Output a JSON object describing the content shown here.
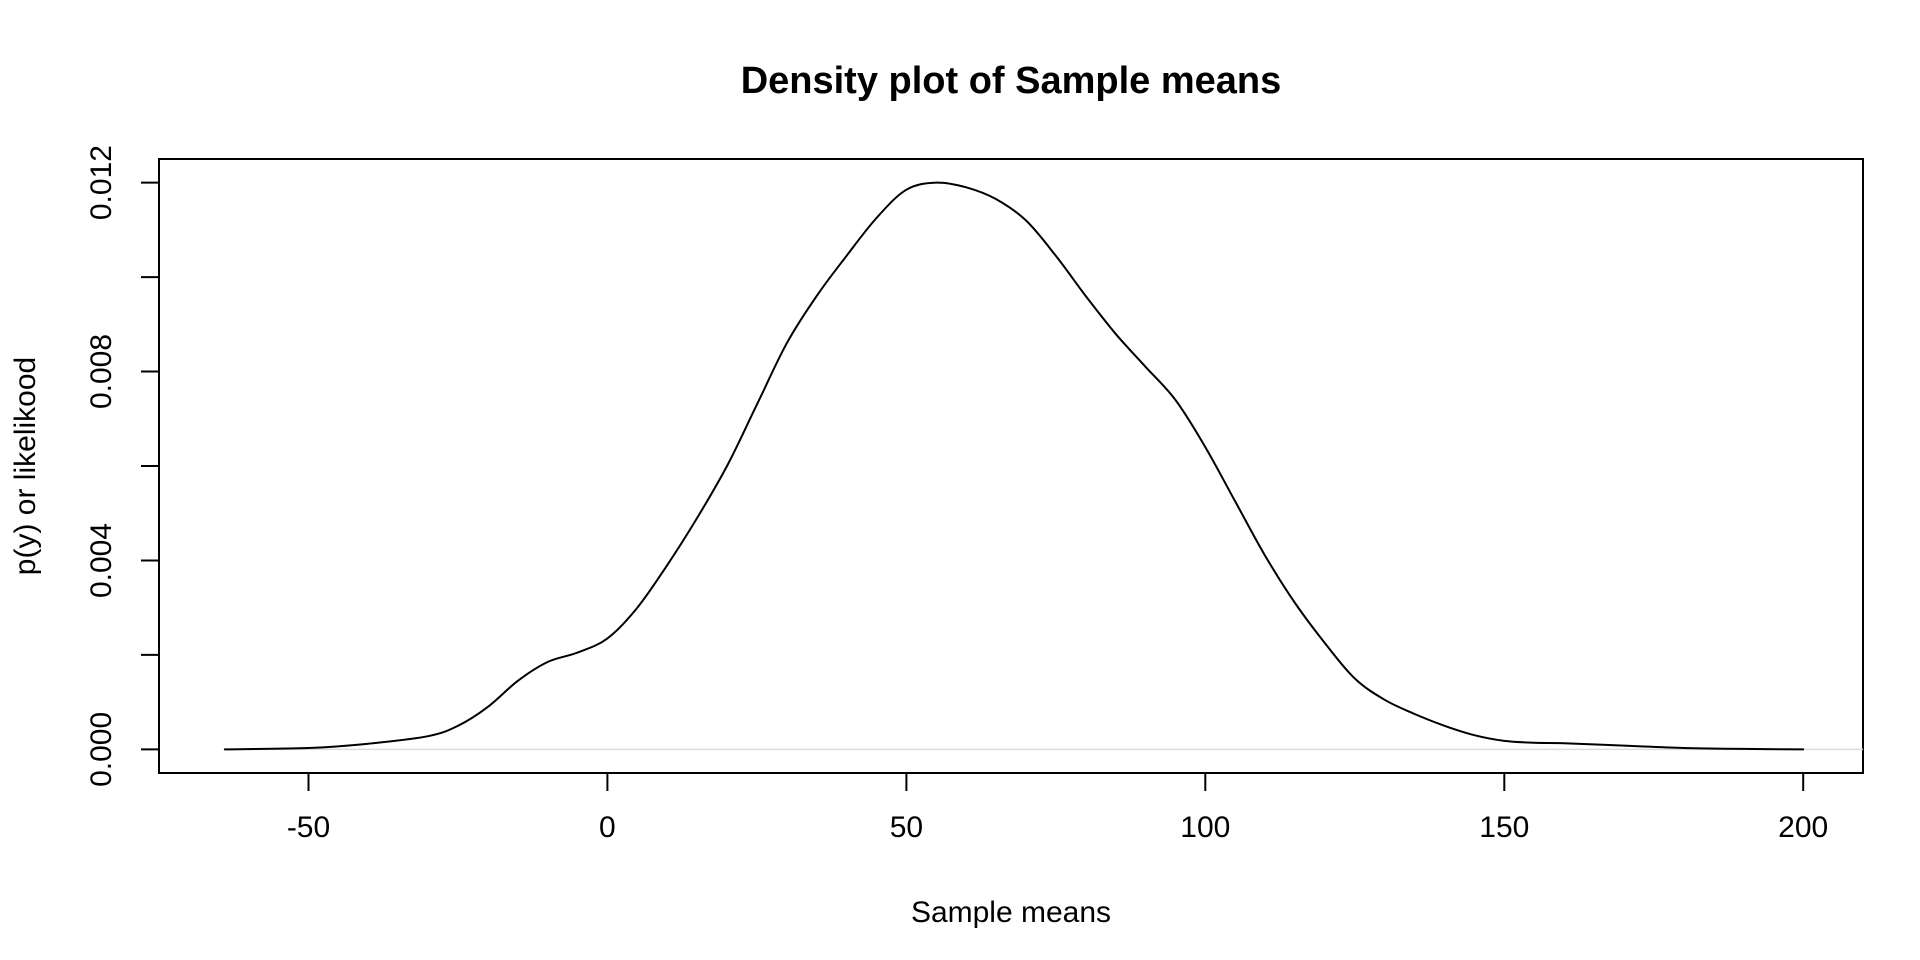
{
  "chart_data": {
    "type": "line",
    "title": "Density plot of Sample means",
    "xlabel": "Sample means",
    "ylabel": "p(y) or likelikood",
    "xlim": [
      -75,
      210
    ],
    "ylim": [
      -0.0005,
      0.0125
    ],
    "x_ticks": [
      -50,
      0,
      50,
      100,
      150,
      200
    ],
    "x_tick_labels": [
      "-50",
      "0",
      "50",
      "100",
      "150",
      "200"
    ],
    "y_ticks": [
      0.0,
      0.002,
      0.004,
      0.006,
      0.008,
      0.01,
      0.012
    ],
    "y_tick_labels": [
      "0.000",
      "",
      "0.004",
      "",
      "0.008",
      "",
      "0.012"
    ],
    "baseline": 0,
    "grid": false,
    "line_color": "#000000",
    "baseline_color": "#dcdcdc",
    "series": [
      {
        "x": [
          -64,
          -50,
          -40,
          -30,
          -25,
          -20,
          -15,
          -10,
          -5,
          0,
          5,
          10,
          15,
          20,
          25,
          30,
          35,
          40,
          45,
          50,
          55,
          60,
          65,
          70,
          75,
          80,
          85,
          90,
          95,
          100,
          105,
          110,
          115,
          120,
          125,
          130,
          135,
          140,
          145,
          150,
          155,
          160,
          170,
          180,
          190,
          200
        ],
        "y": [
          0.0,
          3e-05,
          0.00012,
          0.00028,
          0.0005,
          0.0009,
          0.00145,
          0.00185,
          0.00205,
          0.00235,
          0.003,
          0.0039,
          0.0049,
          0.006,
          0.0073,
          0.0086,
          0.0096,
          0.01045,
          0.01125,
          0.01185,
          0.012,
          0.0119,
          0.01165,
          0.0112,
          0.01045,
          0.0096,
          0.0088,
          0.0081,
          0.0074,
          0.0064,
          0.00525,
          0.0041,
          0.0031,
          0.00225,
          0.0015,
          0.00105,
          0.00075,
          0.0005,
          0.0003,
          0.00018,
          0.00014,
          0.00013,
          8e-05,
          3e-05,
          1e-05,
          0.0
        ]
      }
    ]
  }
}
